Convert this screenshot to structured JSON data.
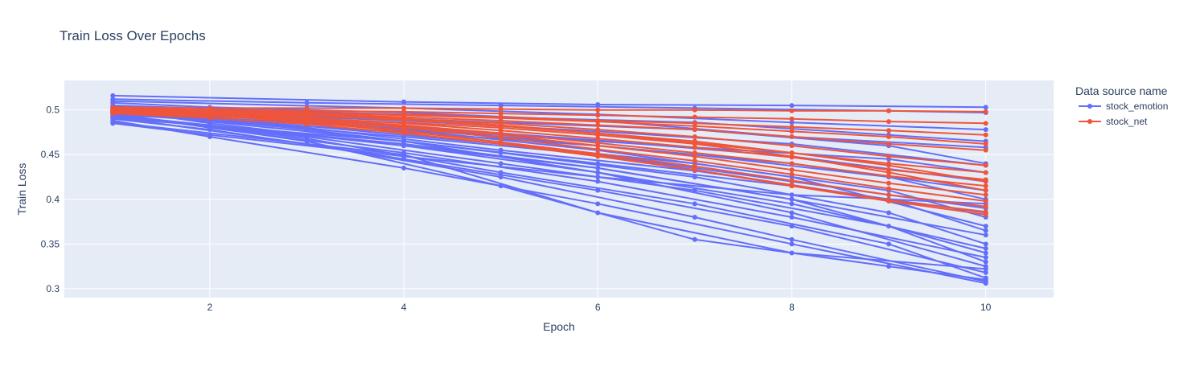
{
  "chart_data": {
    "type": "line",
    "title": "Train Loss Over Epochs",
    "xlabel": "Epoch",
    "ylabel": "Train Loss",
    "xlim": [
      0.5,
      10.7
    ],
    "ylim": [
      0.29,
      0.533
    ],
    "x_ticks": [
      2,
      4,
      6,
      8,
      10
    ],
    "y_ticks": [
      0.3,
      0.35,
      0.4,
      0.45,
      0.5
    ],
    "y_tick_labels": [
      "0.3",
      "0.35",
      "0.4",
      "0.45",
      "0.5"
    ],
    "grid": true,
    "legend_position": "top-right",
    "legend": {
      "title": "Data source name",
      "entries": [
        "stock_emotion",
        "stock_net"
      ]
    },
    "colors": {
      "stock_emotion": "#636efa",
      "stock_net": "#ef553b",
      "plot_background": "#e5ecf6",
      "grid": "#ffffff"
    },
    "series": [
      {
        "name": "stock_emotion",
        "x": [
          1,
          4,
          6,
          8,
          10
        ],
        "y": [
          0.516,
          0.509,
          0.506,
          0.505,
          0.503
        ]
      },
      {
        "name": "stock_emotion",
        "x": [
          1,
          3,
          5,
          7,
          9,
          10
        ],
        "y": [
          0.512,
          0.508,
          0.505,
          0.502,
          0.499,
          0.497
        ]
      },
      {
        "name": "stock_emotion",
        "x": [
          1,
          4,
          6,
          8,
          10
        ],
        "y": [
          0.51,
          0.502,
          0.495,
          0.486,
          0.478
        ]
      },
      {
        "name": "stock_emotion",
        "x": [
          1,
          3,
          5,
          7,
          9,
          10
        ],
        "y": [
          0.505,
          0.498,
          0.492,
          0.486,
          0.472,
          0.465
        ]
      },
      {
        "name": "stock_emotion",
        "x": [
          1,
          2,
          4,
          6,
          8,
          10
        ],
        "y": [
          0.508,
          0.503,
          0.497,
          0.488,
          0.47,
          0.458
        ]
      },
      {
        "name": "stock_emotion",
        "x": [
          1,
          3,
          5,
          7,
          9,
          10
        ],
        "y": [
          0.502,
          0.494,
          0.486,
          0.478,
          0.46,
          0.44
        ]
      },
      {
        "name": "stock_emotion",
        "x": [
          1,
          4,
          6,
          8,
          10
        ],
        "y": [
          0.5,
          0.488,
          0.476,
          0.462,
          0.438
        ]
      },
      {
        "name": "stock_emotion",
        "x": [
          1,
          3,
          5,
          7,
          9,
          10
        ],
        "y": [
          0.498,
          0.485,
          0.472,
          0.458,
          0.445,
          0.43
        ]
      },
      {
        "name": "stock_emotion",
        "x": [
          1,
          2,
          4,
          6,
          8,
          10
        ],
        "y": [
          0.503,
          0.496,
          0.482,
          0.466,
          0.448,
          0.42
        ]
      },
      {
        "name": "stock_emotion",
        "x": [
          1,
          4,
          6,
          8,
          10
        ],
        "y": [
          0.495,
          0.475,
          0.46,
          0.44,
          0.41
        ]
      },
      {
        "name": "stock_emotion",
        "x": [
          1,
          3,
          5,
          7,
          9,
          10
        ],
        "y": [
          0.501,
          0.487,
          0.47,
          0.45,
          0.425,
          0.4
        ]
      },
      {
        "name": "stock_emotion",
        "x": [
          1,
          2,
          4,
          6,
          8,
          10
        ],
        "y": [
          0.497,
          0.488,
          0.47,
          0.45,
          0.42,
          0.39
        ]
      },
      {
        "name": "stock_emotion",
        "x": [
          1,
          3,
          5,
          7,
          9,
          10
        ],
        "y": [
          0.499,
          0.482,
          0.462,
          0.44,
          0.41,
          0.38
        ]
      },
      {
        "name": "stock_emotion",
        "x": [
          1,
          4,
          6,
          8,
          10
        ],
        "y": [
          0.504,
          0.478,
          0.455,
          0.425,
          0.37
        ]
      },
      {
        "name": "stock_emotion",
        "x": [
          1,
          2,
          4,
          6,
          8,
          10
        ],
        "y": [
          0.494,
          0.483,
          0.46,
          0.435,
          0.4,
          0.36
        ]
      },
      {
        "name": "stock_emotion",
        "x": [
          1,
          3,
          5,
          7,
          9,
          10
        ],
        "y": [
          0.5,
          0.478,
          0.452,
          0.425,
          0.385,
          0.35
        ]
      },
      {
        "name": "stock_emotion",
        "x": [
          1,
          4,
          6,
          8,
          10
        ],
        "y": [
          0.492,
          0.462,
          0.435,
          0.4,
          0.34
        ]
      },
      {
        "name": "stock_emotion",
        "x": [
          1,
          2,
          4,
          6,
          8,
          10
        ],
        "y": [
          0.496,
          0.48,
          0.452,
          0.42,
          0.38,
          0.335
        ]
      },
      {
        "name": "stock_emotion",
        "x": [
          1,
          3,
          5,
          7,
          9,
          10
        ],
        "y": [
          0.493,
          0.47,
          0.44,
          0.41,
          0.37,
          0.33
        ]
      },
      {
        "name": "stock_emotion",
        "x": [
          1,
          4,
          6,
          8,
          10
        ],
        "y": [
          0.498,
          0.465,
          0.43,
          0.385,
          0.325
        ]
      },
      {
        "name": "stock_emotion",
        "x": [
          1,
          2,
          4,
          6,
          8,
          10
        ],
        "y": [
          0.49,
          0.478,
          0.445,
          0.41,
          0.37,
          0.318
        ]
      },
      {
        "name": "stock_emotion",
        "x": [
          1,
          3,
          5,
          7,
          9,
          10
        ],
        "y": [
          0.495,
          0.468,
          0.43,
          0.395,
          0.35,
          0.312
        ]
      },
      {
        "name": "stock_emotion",
        "x": [
          1,
          3,
          5,
          7,
          8,
          10
        ],
        "y": [
          0.492,
          0.462,
          0.425,
          0.38,
          0.355,
          0.308
        ]
      },
      {
        "name": "stock_emotion",
        "x": [
          1,
          2,
          4,
          6,
          8,
          10
        ],
        "y": [
          0.488,
          0.47,
          0.435,
          0.395,
          0.35,
          0.306
        ]
      },
      {
        "name": "stock_emotion",
        "x": [
          1,
          3,
          5,
          7,
          9,
          10
        ],
        "y": [
          0.496,
          0.465,
          0.415,
          0.355,
          0.325,
          0.31
        ]
      },
      {
        "name": "stock_emotion",
        "x": [
          1,
          4,
          6,
          8,
          10
        ],
        "y": [
          0.486,
          0.45,
          0.385,
          0.34,
          0.322
        ]
      },
      {
        "name": "stock_emotion",
        "x": [
          1,
          2,
          4,
          6,
          8,
          10
        ],
        "y": [
          0.501,
          0.485,
          0.46,
          0.43,
          0.395,
          0.345
        ]
      },
      {
        "name": "stock_emotion",
        "x": [
          1,
          3,
          5,
          7,
          9,
          10
        ],
        "y": [
          0.497,
          0.48,
          0.455,
          0.432,
          0.4,
          0.365
        ]
      },
      {
        "name": "stock_emotion",
        "x": [
          1,
          4,
          6,
          8,
          10
        ],
        "y": [
          0.491,
          0.465,
          0.44,
          0.415,
          0.385
        ]
      },
      {
        "name": "stock_emotion",
        "x": [
          1,
          2,
          4,
          6,
          8,
          10
        ],
        "y": [
          0.485,
          0.472,
          0.448,
          0.425,
          0.405,
          0.395
        ]
      },
      {
        "name": "stock_net",
        "x": [
          1,
          2,
          3,
          4,
          5,
          6,
          7,
          8,
          9,
          10
        ],
        "y": [
          0.503,
          0.502,
          0.502,
          0.502,
          0.501,
          0.5,
          0.5,
          0.499,
          0.499,
          0.498
        ]
      },
      {
        "name": "stock_net",
        "x": [
          1,
          2,
          3,
          4,
          5,
          6,
          7,
          8,
          9,
          10
        ],
        "y": [
          0.502,
          0.5,
          0.499,
          0.498,
          0.496,
          0.494,
          0.492,
          0.49,
          0.487,
          0.485
        ]
      },
      {
        "name": "stock_net",
        "x": [
          1,
          2,
          3,
          4,
          5,
          6,
          7,
          8,
          9,
          10
        ],
        "y": [
          0.5,
          0.499,
          0.497,
          0.495,
          0.492,
          0.488,
          0.485,
          0.481,
          0.477,
          0.472
        ]
      },
      {
        "name": "stock_net",
        "x": [
          1,
          2,
          3,
          4,
          5,
          6,
          7,
          8,
          9,
          10
        ],
        "y": [
          0.501,
          0.498,
          0.495,
          0.492,
          0.488,
          0.483,
          0.478,
          0.47,
          0.462,
          0.455
        ]
      },
      {
        "name": "stock_net",
        "x": [
          1,
          2,
          3,
          4,
          5,
          6,
          7,
          8,
          9,
          10
        ],
        "y": [
          0.499,
          0.497,
          0.494,
          0.49,
          0.485,
          0.478,
          0.47,
          0.46,
          0.448,
          0.438
        ]
      },
      {
        "name": "stock_net",
        "x": [
          1,
          2,
          3,
          4,
          5,
          6,
          7,
          8,
          9,
          10
        ],
        "y": [
          0.502,
          0.499,
          0.495,
          0.49,
          0.483,
          0.474,
          0.463,
          0.452,
          0.44,
          0.43
        ]
      },
      {
        "name": "stock_net",
        "x": [
          1,
          2,
          3,
          4,
          5,
          6,
          7,
          8,
          9,
          10
        ],
        "y": [
          0.498,
          0.495,
          0.491,
          0.485,
          0.477,
          0.468,
          0.458,
          0.447,
          0.433,
          0.422
        ]
      },
      {
        "name": "stock_net",
        "x": [
          1,
          2,
          3,
          4,
          5,
          6,
          7,
          8,
          9,
          10
        ],
        "y": [
          0.5,
          0.496,
          0.49,
          0.483,
          0.474,
          0.463,
          0.452,
          0.44,
          0.426,
          0.415
        ]
      },
      {
        "name": "stock_net",
        "x": [
          1,
          2,
          3,
          4,
          5,
          6,
          7,
          8,
          9,
          10
        ],
        "y": [
          0.497,
          0.493,
          0.488,
          0.481,
          0.472,
          0.46,
          0.448,
          0.433,
          0.418,
          0.405
        ]
      },
      {
        "name": "stock_net",
        "x": [
          1,
          2,
          3,
          4,
          5,
          6,
          7,
          8,
          9,
          10
        ],
        "y": [
          0.501,
          0.496,
          0.489,
          0.48,
          0.469,
          0.456,
          0.443,
          0.428,
          0.412,
          0.398
        ]
      },
      {
        "name": "stock_net",
        "x": [
          1,
          2,
          3,
          4,
          5,
          6,
          7,
          8,
          9,
          10
        ],
        "y": [
          0.499,
          0.494,
          0.486,
          0.476,
          0.464,
          0.451,
          0.437,
          0.421,
          0.405,
          0.392
        ]
      },
      {
        "name": "stock_net",
        "x": [
          1,
          2,
          3,
          4,
          5,
          6,
          7,
          8,
          9,
          10
        ],
        "y": [
          0.496,
          0.491,
          0.484,
          0.474,
          0.462,
          0.448,
          0.433,
          0.416,
          0.399,
          0.386
        ]
      },
      {
        "name": "stock_net",
        "x": [
          1,
          2,
          3,
          4,
          5,
          6,
          7,
          8,
          9,
          10
        ],
        "y": [
          0.503,
          0.497,
          0.488,
          0.477,
          0.464,
          0.449,
          0.433,
          0.415,
          0.398,
          0.383
        ]
      },
      {
        "name": "stock_net",
        "x": [
          1,
          2,
          3,
          4,
          5,
          6,
          7,
          8,
          9,
          10
        ],
        "y": [
          0.498,
          0.496,
          0.493,
          0.489,
          0.482,
          0.474,
          0.465,
          0.452,
          0.438,
          0.42
        ]
      },
      {
        "name": "stock_net",
        "x": [
          1,
          2,
          3,
          4,
          5,
          6,
          7,
          8,
          9,
          10
        ],
        "y": [
          0.5,
          0.498,
          0.496,
          0.494,
          0.491,
          0.487,
          0.482,
          0.476,
          0.47,
          0.462
        ]
      },
      {
        "name": "stock_net",
        "x": [
          1,
          2,
          3,
          4,
          5,
          6,
          7,
          8,
          9,
          10
        ],
        "y": [
          0.497,
          0.494,
          0.49,
          0.486,
          0.48,
          0.472,
          0.462,
          0.448,
          0.43,
          0.41
        ]
      }
    ]
  }
}
